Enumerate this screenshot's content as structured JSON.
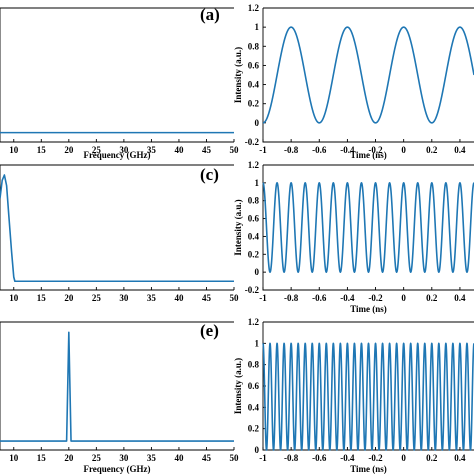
{
  "chart_data": [
    {
      "id": "spectrum-top",
      "type": "line",
      "panel_label": "(a)",
      "xlabel": "Frequency (GHz)",
      "ylabel": "",
      "xlim": [
        7.5,
        50
      ],
      "ylim": [
        0,
        1
      ],
      "xticks": [
        10,
        15,
        20,
        25,
        30,
        35,
        40,
        45,
        50
      ],
      "yticks": [],
      "x": [
        7.5,
        50
      ],
      "y": [
        0.0,
        0.0
      ],
      "line_color": "#1f77b4"
    },
    {
      "id": "time-top",
      "type": "line",
      "panel_label": "",
      "xlabel": "Time (ns)",
      "ylabel": "Intensity (a.u.)",
      "xlim": [
        -1,
        0.5
      ],
      "ylim": [
        -0.2,
        1.2
      ],
      "xticks": [
        -1,
        -0.8,
        -0.6,
        -0.4,
        -0.2,
        0,
        0.2,
        0.4
      ],
      "xtick_labels": [
        "-1",
        "-0.8",
        "-0.6",
        "-0.4",
        "-0.2",
        "0",
        "0.2",
        "0.4"
      ],
      "yticks": [
        -0.2,
        0,
        0.2,
        0.4,
        0.6,
        0.8,
        1,
        1.2
      ],
      "ytick_labels": [
        "-0.2",
        "0",
        "0.2",
        "0.4",
        "0.6",
        "0.8",
        "1",
        "1.2"
      ],
      "function": "cosine",
      "frequency_ghz": 2.5,
      "offset": 0.5,
      "amplitude": 0.5,
      "line_color": "#1f77b4"
    },
    {
      "id": "spectrum-middle",
      "type": "line",
      "panel_label": "(c)",
      "xlabel": "",
      "ylabel": "",
      "xlim": [
        7.5,
        50
      ],
      "ylim": [
        0,
        1
      ],
      "xticks": [
        10,
        15,
        20,
        25,
        30,
        35,
        40,
        45,
        50
      ],
      "yticks": [],
      "x": [
        7.5,
        7.9,
        8.3,
        8.7,
        9.1,
        9.6,
        10.0,
        10.2,
        50
      ],
      "y": [
        0.78,
        0.95,
        1.0,
        0.9,
        0.62,
        0.28,
        0.04,
        0.0,
        0.0
      ],
      "line_color": "#1f77b4"
    },
    {
      "id": "time-middle",
      "type": "line",
      "panel_label": "",
      "xlabel": "Time (ns)",
      "ylabel": "Intensity (a.u.)",
      "xlim": [
        -1,
        0.5
      ],
      "ylim": [
        -0.2,
        1.2
      ],
      "xticks": [
        -1,
        -0.8,
        -0.6,
        -0.4,
        -0.2,
        0,
        0.2,
        0.4
      ],
      "xtick_labels": [
        "-1",
        "-0.8",
        "-0.6",
        "-0.4",
        "-0.2",
        "0",
        "0.2",
        "0.4"
      ],
      "yticks": [
        -0.2,
        0,
        0.2,
        0.4,
        0.6,
        0.8,
        1,
        1.2
      ],
      "ytick_labels": [
        "-0.2",
        "0",
        "0.2",
        "0.4",
        "0.6",
        "0.8",
        "1",
        "1.2"
      ],
      "function": "cosine",
      "frequency_ghz": 10,
      "offset": 0.5,
      "amplitude": 0.5,
      "line_color": "#1f77b4"
    },
    {
      "id": "spectrum-bottom",
      "type": "line",
      "panel_label": "(e)",
      "xlabel": "Frequency (GHz)",
      "ylabel": "",
      "xlim": [
        7.5,
        50
      ],
      "ylim": [
        0,
        1
      ],
      "xticks": [
        10,
        15,
        20,
        25,
        30,
        35,
        40,
        45,
        50
      ],
      "yticks": [],
      "x": [
        7.5,
        19.6,
        20.0,
        20.4,
        50
      ],
      "y": [
        0.0,
        0.0,
        1.0,
        0.0,
        0.0
      ],
      "line_color": "#1f77b4"
    },
    {
      "id": "time-bottom",
      "type": "line",
      "panel_label": "",
      "xlabel": "Time (ns)",
      "ylabel": "Intensity (a.u.)",
      "xlim": [
        -1,
        0.5
      ],
      "ylim": [
        0,
        1.2
      ],
      "xticks": [
        -1,
        -0.8,
        -0.6,
        -0.4,
        -0.2,
        0,
        0.2,
        0.4
      ],
      "xtick_labels": [
        "-1",
        "-0.8",
        "-0.6",
        "-0.4",
        "-0.2",
        "0",
        "0.2",
        "0.4"
      ],
      "yticks": [
        0,
        0.2,
        0.4,
        0.6,
        0.8,
        1,
        1.2
      ],
      "ytick_labels": [
        "0",
        "0.2",
        "0.4",
        "0.6",
        "0.8",
        "1",
        "1.2"
      ],
      "function": "cosine",
      "frequency_ghz": 20,
      "offset": 0.5,
      "amplitude": 0.5,
      "line_color": "#1f77b4"
    }
  ]
}
